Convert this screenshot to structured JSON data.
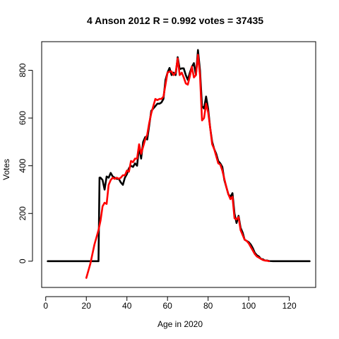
{
  "chart_data": {
    "type": "line",
    "title": "4 Anson 2012 R = 0.992 votes = 37435",
    "xlabel": "Age in 2020",
    "ylabel": "Votes",
    "xlim": [
      -2,
      133
    ],
    "ylim": [
      -110,
      920
    ],
    "x_ticks": [
      0,
      20,
      40,
      60,
      80,
      100,
      120
    ],
    "y_ticks": [
      0,
      200,
      400,
      600,
      800
    ],
    "grid": false,
    "series": [
      {
        "color": "#000000",
        "points": [
          [
            1,
            0
          ],
          [
            5,
            0
          ],
          [
            10,
            0
          ],
          [
            15,
            0
          ],
          [
            20,
            0
          ],
          [
            25,
            0
          ],
          [
            26,
            0
          ],
          [
            26.5,
            350
          ],
          [
            27,
            350
          ],
          [
            28,
            340
          ],
          [
            29,
            300
          ],
          [
            30,
            355
          ],
          [
            31,
            350
          ],
          [
            32,
            370
          ],
          [
            33,
            355
          ],
          [
            34,
            350
          ],
          [
            35,
            345
          ],
          [
            36,
            345
          ],
          [
            37,
            330
          ],
          [
            38,
            320
          ],
          [
            39,
            350
          ],
          [
            40,
            365
          ],
          [
            41,
            390
          ],
          [
            42,
            400
          ],
          [
            43,
            395
          ],
          [
            44,
            410
          ],
          [
            45,
            400
          ],
          [
            46,
            480
          ],
          [
            47,
            430
          ],
          [
            48,
            500
          ],
          [
            49,
            520
          ],
          [
            50,
            510
          ],
          [
            51,
            570
          ],
          [
            52,
            630
          ],
          [
            53,
            640
          ],
          [
            54,
            650
          ],
          [
            55,
            660
          ],
          [
            56,
            660
          ],
          [
            57,
            665
          ],
          [
            58,
            680
          ],
          [
            59,
            760
          ],
          [
            60,
            790
          ],
          [
            61,
            810
          ],
          [
            62,
            780
          ],
          [
            63,
            790
          ],
          [
            64,
            780
          ],
          [
            65,
            855
          ],
          [
            66,
            805
          ],
          [
            67,
            808
          ],
          [
            68,
            808
          ],
          [
            69,
            780
          ],
          [
            70,
            760
          ],
          [
            71,
            790
          ],
          [
            72,
            815
          ],
          [
            73,
            830
          ],
          [
            74,
            780
          ],
          [
            75,
            885
          ],
          [
            76,
            800
          ],
          [
            77,
            650
          ],
          [
            78,
            640
          ],
          [
            79,
            690
          ],
          [
            80,
            640
          ],
          [
            81,
            560
          ],
          [
            82,
            500
          ],
          [
            83,
            470
          ],
          [
            84,
            450
          ],
          [
            85,
            420
          ],
          [
            86,
            410
          ],
          [
            87,
            395
          ],
          [
            88,
            340
          ],
          [
            89,
            310
          ],
          [
            90,
            280
          ],
          [
            91,
            270
          ],
          [
            92,
            285
          ],
          [
            93,
            200
          ],
          [
            94,
            160
          ],
          [
            95,
            190
          ],
          [
            96,
            140
          ],
          [
            97,
            120
          ],
          [
            98,
            90
          ],
          [
            99,
            85
          ],
          [
            100,
            80
          ],
          [
            101,
            70
          ],
          [
            102,
            55
          ],
          [
            103,
            35
          ],
          [
            104,
            25
          ],
          [
            105,
            20
          ],
          [
            106,
            10
          ],
          [
            107,
            8
          ],
          [
            108,
            3
          ],
          [
            109,
            3
          ],
          [
            110,
            1
          ],
          [
            112,
            0
          ],
          [
            115,
            0
          ],
          [
            120,
            0
          ],
          [
            125,
            0
          ],
          [
            130,
            0
          ]
        ]
      },
      {
        "color": "#ff0000",
        "points": [
          [
            20,
            -70
          ],
          [
            21,
            -40
          ],
          [
            22,
            -10
          ],
          [
            23,
            30
          ],
          [
            24,
            70
          ],
          [
            25,
            100
          ],
          [
            26,
            130
          ],
          [
            27,
            170
          ],
          [
            28,
            230
          ],
          [
            29,
            245
          ],
          [
            30,
            240
          ],
          [
            31,
            320
          ],
          [
            32,
            340
          ],
          [
            33,
            350
          ],
          [
            34,
            345
          ],
          [
            35,
            350
          ],
          [
            36,
            345
          ],
          [
            37,
            350
          ],
          [
            38,
            360
          ],
          [
            39,
            360
          ],
          [
            40,
            380
          ],
          [
            41,
            375
          ],
          [
            42,
            420
          ],
          [
            43,
            415
          ],
          [
            44,
            430
          ],
          [
            45,
            430
          ],
          [
            46,
            490
          ],
          [
            47,
            450
          ],
          [
            48,
            480
          ],
          [
            49,
            510
          ],
          [
            50,
            530
          ],
          [
            51,
            580
          ],
          [
            52,
            620
          ],
          [
            53,
            650
          ],
          [
            54,
            680
          ],
          [
            55,
            675
          ],
          [
            56,
            680
          ],
          [
            57,
            680
          ],
          [
            58,
            690
          ],
          [
            59,
            740
          ],
          [
            60,
            790
          ],
          [
            61,
            795
          ],
          [
            62,
            795
          ],
          [
            63,
            780
          ],
          [
            64,
            790
          ],
          [
            65,
            850
          ],
          [
            66,
            780
          ],
          [
            67,
            790
          ],
          [
            68,
            770
          ],
          [
            69,
            745
          ],
          [
            70,
            740
          ],
          [
            71,
            775
          ],
          [
            72,
            815
          ],
          [
            73,
            770
          ],
          [
            74,
            780
          ],
          [
            75,
            865
          ],
          [
            76,
            780
          ],
          [
            77,
            590
          ],
          [
            78,
            600
          ],
          [
            79,
            660
          ],
          [
            80,
            625
          ],
          [
            81,
            560
          ],
          [
            82,
            490
          ],
          [
            83,
            470
          ],
          [
            84,
            440
          ],
          [
            85,
            410
          ],
          [
            86,
            405
          ],
          [
            87,
            380
          ],
          [
            88,
            345
          ],
          [
            89,
            310
          ],
          [
            90,
            280
          ],
          [
            91,
            260
          ],
          [
            92,
            270
          ],
          [
            93,
            180
          ],
          [
            94,
            175
          ],
          [
            95,
            185
          ],
          [
            96,
            130
          ],
          [
            97,
            110
          ],
          [
            98,
            90
          ],
          [
            99,
            85
          ],
          [
            100,
            75
          ],
          [
            101,
            60
          ],
          [
            102,
            45
          ],
          [
            103,
            30
          ],
          [
            104,
            20
          ],
          [
            105,
            15
          ],
          [
            106,
            10
          ],
          [
            107,
            5
          ],
          [
            108,
            3
          ],
          [
            109,
            2
          ],
          [
            110,
            0
          ]
        ]
      }
    ]
  }
}
